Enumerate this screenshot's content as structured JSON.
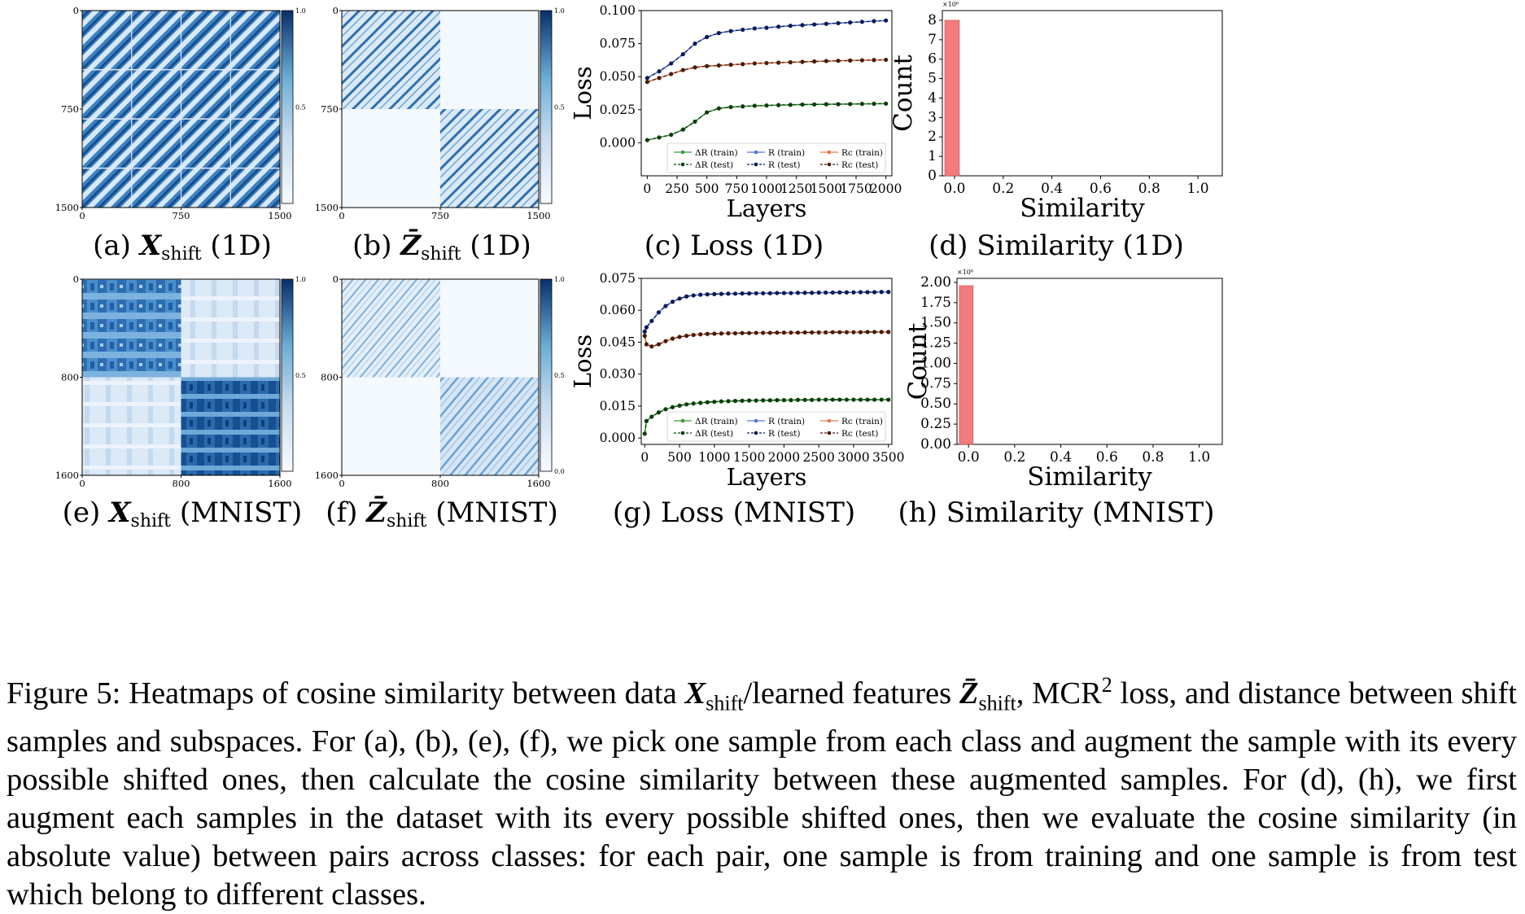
{
  "heatmaps": [
    {
      "id": "a",
      "label": "(a)",
      "symbol": "X",
      "sub": "shift",
      "suffix": "(1D)",
      "ticks": [
        "0",
        "750",
        "1500"
      ],
      "cbar": [
        "1.0",
        "0.5",
        ""
      ],
      "pattern": "x1d"
    },
    {
      "id": "b",
      "label": "(b)",
      "symbol": "Z̄",
      "sub": "shift",
      "suffix": "(1D)",
      "ticks": [
        "0",
        "750",
        "1500"
      ],
      "cbar": [
        "1.0",
        "0.5",
        ""
      ],
      "pattern": "z1d"
    },
    {
      "id": "e",
      "label": "(e)",
      "symbol": "X",
      "sub": "shift",
      "suffix": "(MNIST)",
      "ticks": [
        "0",
        "800",
        "1600"
      ],
      "cbar": [
        "1.0",
        "0.5",
        ""
      ],
      "pattern": "xmn"
    },
    {
      "id": "f",
      "label": "(f)",
      "symbol": "Z̄",
      "sub": "shift",
      "suffix": "(MNIST)",
      "ticks": [
        "0",
        "800",
        "1600"
      ],
      "cbar": [
        "1.0",
        "0.5",
        "0.0"
      ],
      "pattern": "zmn"
    }
  ],
  "chart_data": [
    {
      "id": "c",
      "type": "line",
      "caption": "(c) Loss (1D)",
      "xlabel": "Layers",
      "ylabel": "Loss",
      "xlim": [
        -50,
        2050
      ],
      "ylim": [
        -0.025,
        0.1
      ],
      "xticks": [
        "0",
        "250",
        "500",
        "750",
        "1000",
        "1250",
        "1500",
        "1750",
        "2000"
      ],
      "yticks": [
        "0.000",
        "0.025",
        "0.050",
        "0.075",
        "0.100"
      ],
      "x": [
        0,
        100,
        200,
        300,
        400,
        500,
        600,
        700,
        800,
        900,
        1000,
        1100,
        1200,
        1300,
        1400,
        1500,
        1600,
        1700,
        1800,
        1900,
        2000
      ],
      "series": [
        {
          "name": "ΔR (train)",
          "color": "#3a9a3a",
          "values": [
            0.002,
            0.004,
            0.006,
            0.01,
            0.016,
            0.023,
            0.026,
            0.027,
            0.0275,
            0.028,
            0.0282,
            0.0285,
            0.0287,
            0.0289,
            0.029,
            0.0291,
            0.0292,
            0.0293,
            0.0294,
            0.0295,
            0.0296
          ]
        },
        {
          "name": "ΔR (test)",
          "color": "#0a3d0a",
          "values": [
            0.002,
            0.004,
            0.006,
            0.01,
            0.016,
            0.023,
            0.026,
            0.027,
            0.0275,
            0.028,
            0.0282,
            0.0285,
            0.0287,
            0.0289,
            0.029,
            0.0291,
            0.0292,
            0.0293,
            0.0294,
            0.0295,
            0.0296
          ]
        },
        {
          "name": "R (train)",
          "color": "#5577dd",
          "values": [
            0.049,
            0.054,
            0.06,
            0.067,
            0.075,
            0.08,
            0.083,
            0.0845,
            0.0855,
            0.0865,
            0.087,
            0.0878,
            0.0885,
            0.089,
            0.0895,
            0.09,
            0.0905,
            0.091,
            0.0915,
            0.092,
            0.0925
          ]
        },
        {
          "name": "R (test)",
          "color": "#0a1a5a",
          "values": [
            0.049,
            0.054,
            0.06,
            0.067,
            0.075,
            0.08,
            0.083,
            0.0845,
            0.0855,
            0.0865,
            0.087,
            0.0878,
            0.0885,
            0.089,
            0.0895,
            0.09,
            0.0905,
            0.091,
            0.0915,
            0.092,
            0.0925
          ]
        },
        {
          "name": "Rc (train)",
          "color": "#e07a4a",
          "values": [
            0.046,
            0.049,
            0.052,
            0.055,
            0.057,
            0.058,
            0.0585,
            0.059,
            0.0595,
            0.06,
            0.0603,
            0.0606,
            0.0609,
            0.0612,
            0.0615,
            0.0618,
            0.062,
            0.0622,
            0.0624,
            0.0626,
            0.0628
          ]
        },
        {
          "name": "Rc (test)",
          "color": "#4a1a0a",
          "values": [
            0.046,
            0.049,
            0.052,
            0.055,
            0.057,
            0.058,
            0.0585,
            0.059,
            0.0595,
            0.06,
            0.0603,
            0.0606,
            0.0609,
            0.0612,
            0.0615,
            0.0618,
            0.062,
            0.0622,
            0.0624,
            0.0626,
            0.0628
          ]
        }
      ]
    },
    {
      "id": "d",
      "type": "bar",
      "caption": "(d) Similarity (1D)",
      "xlabel": "Similarity",
      "ylabel": "Count",
      "scale": "×10⁶",
      "xticks": [
        "0.0",
        "0.2",
        "0.4",
        "0.6",
        "0.8",
        "1.0"
      ],
      "yticks": [
        "0",
        "1",
        "2",
        "3",
        "4",
        "5",
        "6",
        "7",
        "8"
      ],
      "xlim": [
        -0.05,
        1.1
      ],
      "ylim": [
        0,
        8.5
      ],
      "bins": [
        {
          "x0": -0.04,
          "x1": 0.02,
          "value": 8.0
        }
      ],
      "color": "#f47b7b"
    },
    {
      "id": "g",
      "type": "line",
      "caption": "(g) Loss (MNIST)",
      "xlabel": "Layers",
      "ylabel": "Loss",
      "xlim": [
        -50,
        3550
      ],
      "ylim": [
        -0.003,
        0.075
      ],
      "xticks": [
        "0",
        "500",
        "1000",
        "1500",
        "2000",
        "2500",
        "3000",
        "3500"
      ],
      "yticks": [
        "0.000",
        "0.015",
        "0.030",
        "0.045",
        "0.060",
        "0.075"
      ],
      "x": [
        0,
        25,
        100,
        200,
        300,
        400,
        500,
        600,
        700,
        800,
        900,
        1000,
        1100,
        1200,
        1300,
        1400,
        1500,
        1600,
        1700,
        1800,
        1900,
        2000,
        2100,
        2200,
        2300,
        2400,
        2500,
        2600,
        2700,
        2800,
        2900,
        3000,
        3100,
        3200,
        3300,
        3400,
        3500
      ],
      "series": [
        {
          "name": "ΔR (train)",
          "color": "#3a9a3a",
          "values": [
            0.002,
            0.008,
            0.01,
            0.012,
            0.0135,
            0.0145,
            0.0152,
            0.0158,
            0.0162,
            0.0165,
            0.0168,
            0.017,
            0.0172,
            0.0173,
            0.0174,
            0.0175,
            0.0176,
            0.0176,
            0.0177,
            0.0177,
            0.0178,
            0.0178,
            0.0178,
            0.0179,
            0.0179,
            0.0179,
            0.018,
            0.018,
            0.018,
            0.018,
            0.018,
            0.018,
            0.018,
            0.018,
            0.018,
            0.018,
            0.018
          ]
        },
        {
          "name": "ΔR (test)",
          "color": "#0a3d0a",
          "values": [
            0.002,
            0.008,
            0.01,
            0.012,
            0.0135,
            0.0145,
            0.0152,
            0.0158,
            0.0162,
            0.0165,
            0.0168,
            0.017,
            0.0172,
            0.0173,
            0.0174,
            0.0175,
            0.0176,
            0.0176,
            0.0177,
            0.0177,
            0.0178,
            0.0178,
            0.0178,
            0.0179,
            0.0179,
            0.0179,
            0.018,
            0.018,
            0.018,
            0.018,
            0.018,
            0.018,
            0.018,
            0.018,
            0.018,
            0.018,
            0.018
          ]
        },
        {
          "name": "R (train)",
          "color": "#5577dd",
          "values": [
            0.05,
            0.052,
            0.055,
            0.059,
            0.062,
            0.064,
            0.0655,
            0.0665,
            0.067,
            0.0673,
            0.0675,
            0.0676,
            0.0677,
            0.0678,
            0.0678,
            0.0679,
            0.0679,
            0.068,
            0.068,
            0.068,
            0.0681,
            0.0681,
            0.0681,
            0.0682,
            0.0682,
            0.0682,
            0.0683,
            0.0683,
            0.0683,
            0.0684,
            0.0684,
            0.0684,
            0.0685,
            0.0685,
            0.0685,
            0.0686,
            0.0686
          ]
        },
        {
          "name": "R (test)",
          "color": "#0a1a5a",
          "values": [
            0.05,
            0.052,
            0.055,
            0.059,
            0.062,
            0.064,
            0.0655,
            0.0665,
            0.067,
            0.0673,
            0.0675,
            0.0676,
            0.0677,
            0.0678,
            0.0678,
            0.0679,
            0.0679,
            0.068,
            0.068,
            0.068,
            0.0681,
            0.0681,
            0.0681,
            0.0682,
            0.0682,
            0.0682,
            0.0683,
            0.0683,
            0.0683,
            0.0684,
            0.0684,
            0.0684,
            0.0685,
            0.0685,
            0.0685,
            0.0686,
            0.0686
          ]
        },
        {
          "name": "Rc (train)",
          "color": "#e07a4a",
          "values": [
            0.048,
            0.044,
            0.043,
            0.044,
            0.0455,
            0.0467,
            0.0475,
            0.048,
            0.0484,
            0.0487,
            0.0489,
            0.049,
            0.0491,
            0.0492,
            0.0492,
            0.0493,
            0.0493,
            0.0494,
            0.0494,
            0.0494,
            0.0495,
            0.0495,
            0.0495,
            0.0495,
            0.0496,
            0.0496,
            0.0496,
            0.0496,
            0.0497,
            0.0497,
            0.0497,
            0.0497,
            0.0497,
            0.0498,
            0.0498,
            0.0498,
            0.0498
          ]
        },
        {
          "name": "Rc (test)",
          "color": "#4a1a0a",
          "values": [
            0.048,
            0.044,
            0.043,
            0.044,
            0.0455,
            0.0467,
            0.0475,
            0.048,
            0.0484,
            0.0487,
            0.0489,
            0.049,
            0.0491,
            0.0492,
            0.0492,
            0.0493,
            0.0493,
            0.0494,
            0.0494,
            0.0494,
            0.0495,
            0.0495,
            0.0495,
            0.0495,
            0.0496,
            0.0496,
            0.0496,
            0.0496,
            0.0497,
            0.0497,
            0.0497,
            0.0497,
            0.0497,
            0.0498,
            0.0498,
            0.0498,
            0.0498
          ]
        }
      ]
    },
    {
      "id": "h",
      "type": "bar",
      "caption": "(h) Similarity (MNIST)",
      "xlabel": "Similarity",
      "ylabel": "Count",
      "scale": "×10⁶",
      "xticks": [
        "0.0",
        "0.2",
        "0.4",
        "0.6",
        "0.8",
        "1.0"
      ],
      "yticks": [
        "0.00",
        "0.25",
        "0.50",
        "0.75",
        "1.00",
        "1.25",
        "1.50",
        "1.75",
        "2.00"
      ],
      "xlim": [
        -0.05,
        1.1
      ],
      "ylim": [
        0,
        2.05
      ],
      "bins": [
        {
          "x0": -0.04,
          "x1": 0.02,
          "value": 1.96
        }
      ],
      "color": "#f47b7b"
    }
  ],
  "legend_labels": [
    "ΔR (train)",
    "R (train)",
    "Rc (train)",
    "ΔR (test)",
    "R (test)",
    "Rc (test)"
  ],
  "caption": {
    "lead": "Figure 5:",
    "text_parts": [
      "Heatmaps of cosine similarity between data ",
      "/learned features ",
      ", MCR",
      " loss, and distance between shift samples and subspaces. For (a), (b), (e), (f), we pick one sample from each class and augment the sample with its every possible shifted ones, then calculate the cosine similarity between these augmented samples. For (d), (h), we first augment each samples in the dataset with its every possible shifted ones, then we evaluate the cosine similarity (in absolute value) between pairs across classes: for each pair, one sample is from training and one sample is from test which belong to different classes."
    ],
    "sym_x": "X",
    "sym_z": "Z̄",
    "sub": "shift",
    "sup": "2"
  }
}
